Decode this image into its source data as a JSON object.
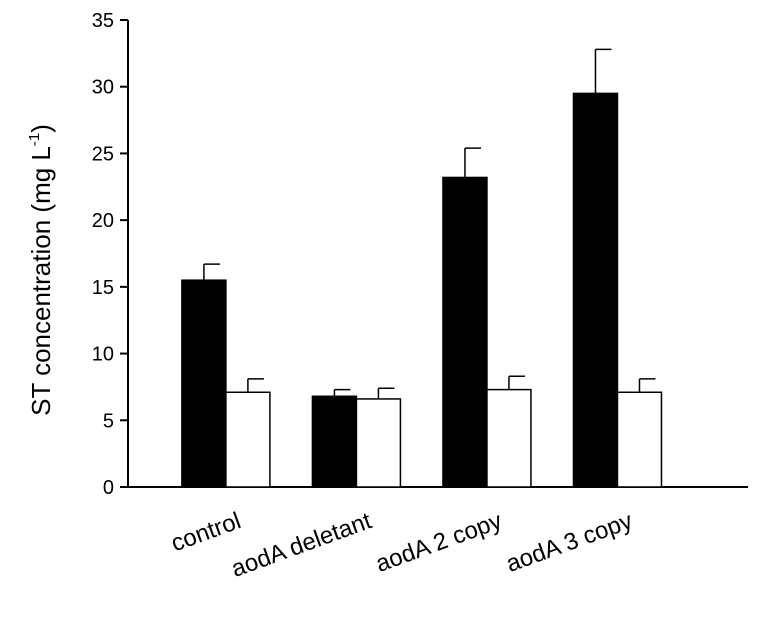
{
  "chart_data": {
    "type": "bar",
    "title": "",
    "xlabel": "",
    "ylabel": {
      "main": "ST concentration (mg L",
      "superscript": "-1",
      "close": ")"
    },
    "categories": [
      "control",
      "aodA deletant",
      "aodA 2 copy",
      "aodA 3 copy"
    ],
    "ylim": [
      0,
      35
    ],
    "yticks": [
      0,
      5,
      10,
      15,
      20,
      25,
      30,
      35
    ],
    "grid": false,
    "legend": "none",
    "series": [
      {
        "values": [
          15.5,
          6.8,
          23.2,
          29.5
        ],
        "errors": [
          1.2,
          0.5,
          2.2,
          3.3
        ],
        "fill": "#000000"
      },
      {
        "values": [
          7.1,
          6.6,
          7.3,
          7.1
        ],
        "errors": [
          1.0,
          0.8,
          1.0,
          1.0
        ],
        "fill": "#ffffff"
      }
    ]
  }
}
